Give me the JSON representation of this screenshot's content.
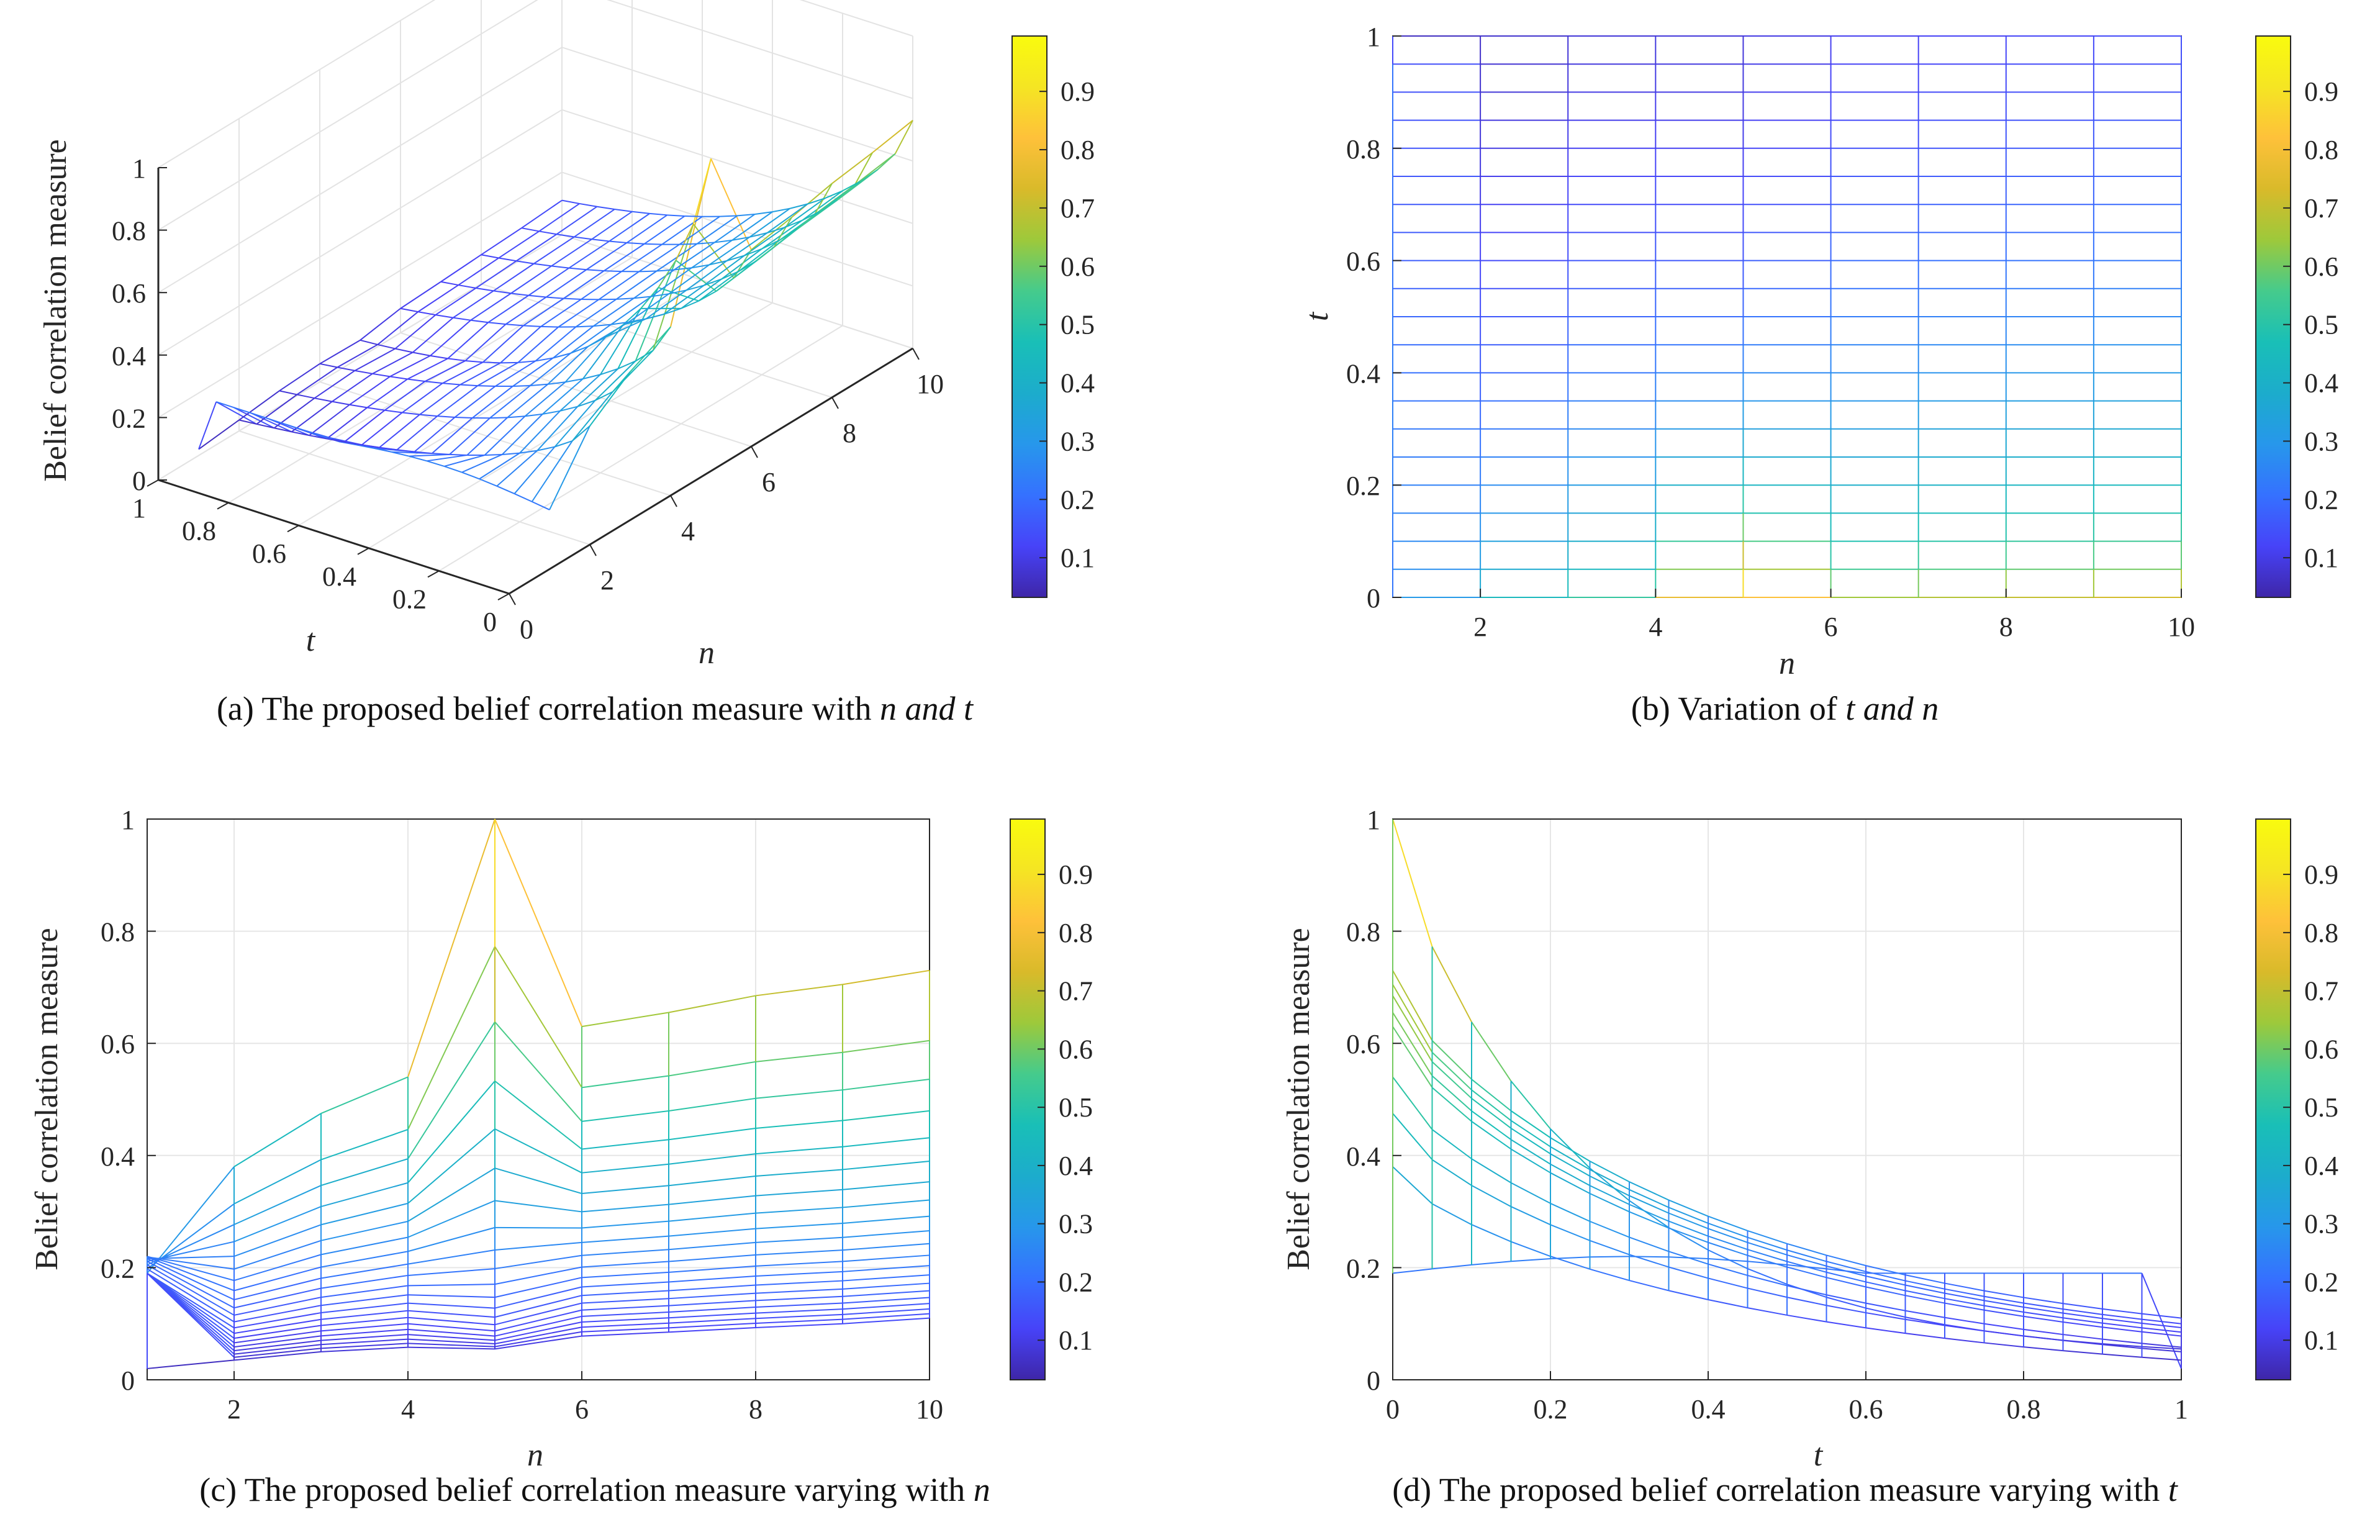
{
  "colormap": [
    "#3e26a8",
    "#4743f8",
    "#3571ff",
    "#2797eb",
    "#1caccc",
    "#19bfb7",
    "#45cb8c",
    "#9dc93b",
    "#d9ba2a",
    "#fec13a",
    "#f5e523",
    "#f9fb0e"
  ],
  "panels": {
    "a": {
      "caption_prefix": "(a) The proposed belief correlation measure with ",
      "caption_italic": "n and t",
      "caption_suffix": "",
      "zlabel": "Belief correlation measure",
      "xlabel": "n",
      "ylabel": "t",
      "n_ticks": [
        "0",
        "2",
        "4",
        "6",
        "8",
        "10"
      ],
      "t_ticks": [
        "1",
        "0.8",
        "0.6",
        "0.4",
        "0.2",
        "0"
      ],
      "z_ticks": [
        "0",
        "0.2",
        "0.4",
        "0.6",
        "0.8",
        "1"
      ],
      "colorbar_ticks": [
        "0.1",
        "0.2",
        "0.3",
        "0.4",
        "0.5",
        "0.6",
        "0.7",
        "0.8",
        "0.9"
      ]
    },
    "b": {
      "caption_prefix": "(b) Variation of ",
      "caption_italic": "t and n",
      "caption_suffix": "",
      "xlabel": "n",
      "ylabel": "t",
      "x_ticks": [
        "2",
        "4",
        "6",
        "8",
        "10"
      ],
      "y_ticks": [
        "0",
        "0.2",
        "0.4",
        "0.6",
        "0.8",
        "1"
      ],
      "colorbar_ticks": [
        "0.1",
        "0.2",
        "0.3",
        "0.4",
        "0.5",
        "0.6",
        "0.7",
        "0.8",
        "0.9"
      ]
    },
    "c": {
      "caption_prefix": "(c) The proposed belief correlation measure varying with ",
      "caption_italic": "n",
      "caption_suffix": "",
      "xlabel": "n",
      "ylabel": "Belief correlation measure",
      "x_ticks": [
        "2",
        "4",
        "6",
        "8",
        "10"
      ],
      "y_ticks": [
        "0",
        "0.2",
        "0.4",
        "0.6",
        "0.8",
        "1"
      ],
      "colorbar_ticks": [
        "0.1",
        "0.2",
        "0.3",
        "0.4",
        "0.5",
        "0.6",
        "0.7",
        "0.8",
        "0.9"
      ]
    },
    "d": {
      "caption_prefix": "(d) The proposed belief correlation measure varying with ",
      "caption_italic": "t",
      "caption_suffix": "",
      "xlabel": "t",
      "ylabel": "Belief correlation measure",
      "x_ticks": [
        "0",
        "0.2",
        "0.4",
        "0.6",
        "0.8",
        "1"
      ],
      "y_ticks": [
        "0",
        "0.2",
        "0.4",
        "0.6",
        "0.8",
        "1"
      ],
      "colorbar_ticks": [
        "0.1",
        "0.2",
        "0.3",
        "0.4",
        "0.5",
        "0.6",
        "0.7",
        "0.8",
        "0.9"
      ]
    }
  },
  "chart_data": [
    {
      "type": "surface",
      "panel": "a",
      "title": "(a) The proposed belief correlation measure with n and t",
      "xlabel": "n",
      "ylabel": "t",
      "zlabel": "Belief correlation measure",
      "n_values": [
        1,
        2,
        3,
        4,
        5,
        6,
        7,
        8,
        9,
        10
      ],
      "t_values": [
        0,
        0.05,
        0.1,
        0.15,
        0.2,
        0.25,
        0.3,
        0.35,
        0.4,
        0.45,
        0.5,
        0.55,
        0.6,
        0.65,
        0.7,
        0.75,
        0.8,
        0.85,
        0.9,
        0.95,
        1
      ],
      "xlim": [
        0,
        10
      ],
      "ylim": [
        0,
        1
      ],
      "zlim": [
        0,
        1
      ],
      "note": "Surface z(n,t) shared by all four panels; generated from peak z(5,0)=1.0, z(6,0)=0.63, z(10,0)=0.73, z(2,0)=0.38, z(1,t)≈0.19, z(n,1)≈0.04–0.11."
    },
    {
      "type": "contour-grid",
      "panel": "b",
      "title": "(b) Variation of t and n",
      "xlabel": "n",
      "ylabel": "t",
      "xlim": [
        1,
        10
      ],
      "ylim": [
        0,
        1
      ]
    },
    {
      "type": "line",
      "panel": "c",
      "title": "(c) The proposed belief correlation measure varying with n",
      "xlabel": "n",
      "ylabel": "Belief correlation measure",
      "xlim": [
        1,
        10
      ],
      "ylim": [
        0,
        1
      ],
      "series_note": "one line per t value (21 lines) plus vertical connectors at each n"
    },
    {
      "type": "line",
      "panel": "d",
      "title": "(d) The proposed belief correlation measure varying with t",
      "xlabel": "t",
      "ylabel": "Belief correlation measure",
      "xlim": [
        0,
        1
      ],
      "ylim": [
        0,
        1
      ],
      "series_note": "one line per n value (10 lines) plus vertical connectors at each t"
    }
  ]
}
